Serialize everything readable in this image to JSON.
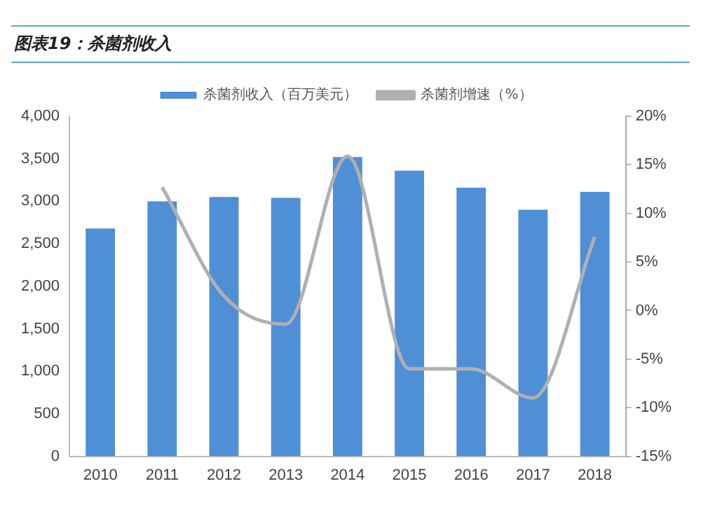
{
  "chart_data": {
    "type": "bar",
    "title": "图表19：杀菌剂收入",
    "categories": [
      "2010",
      "2011",
      "2012",
      "2013",
      "2014",
      "2015",
      "2016",
      "2017",
      "2018"
    ],
    "series": [
      {
        "name": "杀菌剂收入（百万美元）",
        "color": "#4f8fd6",
        "values": [
          2680,
          3000,
          3050,
          3040,
          3520,
          3360,
          3160,
          2900,
          3110
        ]
      },
      {
        "name": "杀菌剂增速（%）",
        "type": "line",
        "axis": "y2",
        "color": "#b0b0b0",
        "values": [
          null,
          12.7,
          1.5,
          -1.4,
          15.9,
          -6,
          -6,
          -9,
          7.6
        ]
      }
    ],
    "ylim": [
      0,
      4000
    ],
    "yticks": [
      {
        "value": 0,
        "label": "0"
      },
      {
        "value": 500,
        "label": "500"
      },
      {
        "value": 1000,
        "label": "1,000"
      },
      {
        "value": 1500,
        "label": "1,500"
      },
      {
        "value": 2000,
        "label": "2,000"
      },
      {
        "value": 2500,
        "label": "2,500"
      },
      {
        "value": 3000,
        "label": "3,000"
      },
      {
        "value": 3500,
        "label": "3,500"
      },
      {
        "value": 4000,
        "label": "4,000"
      }
    ],
    "y2lim": [
      -15,
      20
    ],
    "y2ticks": [
      {
        "value": -15,
        "label": "-15%"
      },
      {
        "value": -10,
        "label": "-10%"
      },
      {
        "value": -5,
        "label": "-5%"
      },
      {
        "value": 0,
        "label": "0%"
      },
      {
        "value": 5,
        "label": "5%"
      },
      {
        "value": 10,
        "label": "10%"
      },
      {
        "value": 15,
        "label": "15%"
      },
      {
        "value": 20,
        "label": "20%"
      }
    ],
    "legend": "top",
    "grid": false,
    "marker": "none"
  }
}
